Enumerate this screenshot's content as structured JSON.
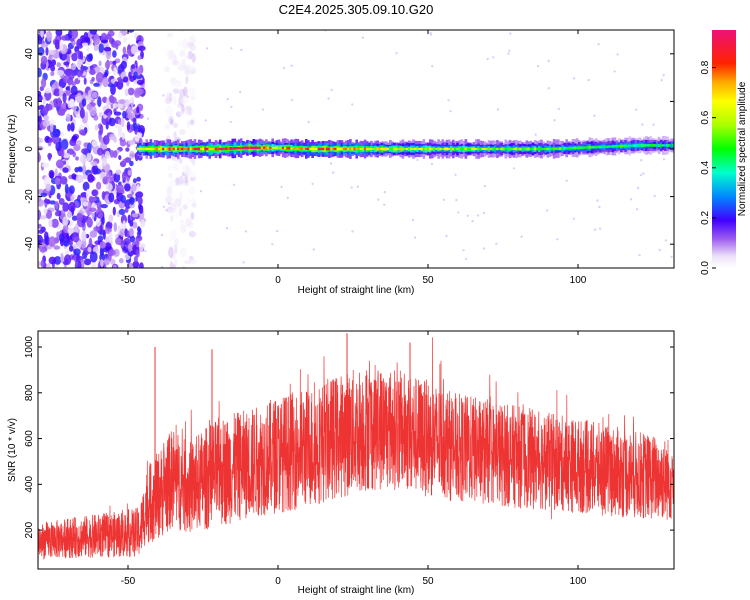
{
  "title": "C2E4.2025.305.09.10.G20",
  "chart_data": [
    {
      "type": "heatmap",
      "xlabel": "Height of straight line (km)",
      "ylabel": "Frequency (Hz)",
      "xlim": [
        -80,
        132
      ],
      "ylim": [
        -50,
        50
      ],
      "xticks": [
        -50,
        0,
        50,
        100
      ],
      "yticks": [
        -40,
        -20,
        0,
        20,
        40
      ],
      "colorbar": {
        "label": "Normalized spectral amplitude",
        "range": [
          0,
          0.95
        ],
        "ticks": [
          0.0,
          0.2,
          0.4,
          0.6,
          0.8
        ]
      },
      "ridge": {
        "frequency_hz": 0,
        "x": [
          -47,
          -40,
          -30,
          -20,
          -10,
          0,
          10,
          20,
          30,
          40,
          50,
          60,
          70,
          80,
          90,
          100,
          110,
          120,
          132
        ],
        "freq": [
          0,
          0,
          0,
          0,
          0.5,
          0.5,
          0,
          0,
          0,
          0,
          0,
          0,
          0,
          0,
          0,
          0.5,
          1,
          1.5,
          1.5
        ],
        "amplitude": [
          0.6,
          0.85,
          0.8,
          0.9,
          0.95,
          0.7,
          0.85,
          0.8,
          0.7,
          0.65,
          0.6,
          0.6,
          0.55,
          0.55,
          0.5,
          0.5,
          0.45,
          0.45,
          0.4
        ]
      },
      "noise_regions": [
        {
          "x": [
            -80,
            -45
          ],
          "freq": [
            -50,
            50
          ],
          "amplitude": 0.15
        },
        {
          "x": [
            -37,
            -28
          ],
          "freq": [
            -50,
            50
          ],
          "amplitude": 0.05
        }
      ]
    },
    {
      "type": "line",
      "xlabel": "Height of straight line (km)",
      "ylabel": "SNR (10 * v/v)",
      "xlim": [
        -80,
        132
      ],
      "ylim": [
        30,
        1070
      ],
      "xticks": [
        -50,
        0,
        50,
        100
      ],
      "yticks": [
        200,
        400,
        600,
        800,
        1000
      ],
      "color": "#ee3333",
      "series": [
        {
          "x": [
            -80,
            -70,
            -60,
            -50,
            -46,
            -44,
            -42,
            -40,
            -35,
            -30,
            -25,
            -20,
            -10,
            0,
            10,
            20,
            30,
            40,
            50,
            60,
            70,
            80,
            90,
            100,
            110,
            120,
            132
          ],
          "values": [
            150,
            165,
            175,
            185,
            190,
            300,
            330,
            350,
            430,
            380,
            420,
            450,
            490,
            530,
            560,
            610,
            650,
            640,
            600,
            560,
            540,
            520,
            500,
            480,
            460,
            440,
            420
          ]
        }
      ],
      "spread": [
        100,
        110,
        120,
        130,
        140,
        200,
        230,
        240,
        280,
        250,
        280,
        300,
        300,
        320,
        330,
        340,
        350,
        330,
        320,
        300,
        290,
        280,
        270,
        260,
        250,
        240,
        230
      ],
      "spikes": [
        {
          "x": -41,
          "value": 1000
        },
        {
          "x": -22,
          "value": 990
        },
        {
          "x": 23,
          "value": 1060
        },
        {
          "x": 44,
          "value": 1020
        }
      ]
    }
  ]
}
